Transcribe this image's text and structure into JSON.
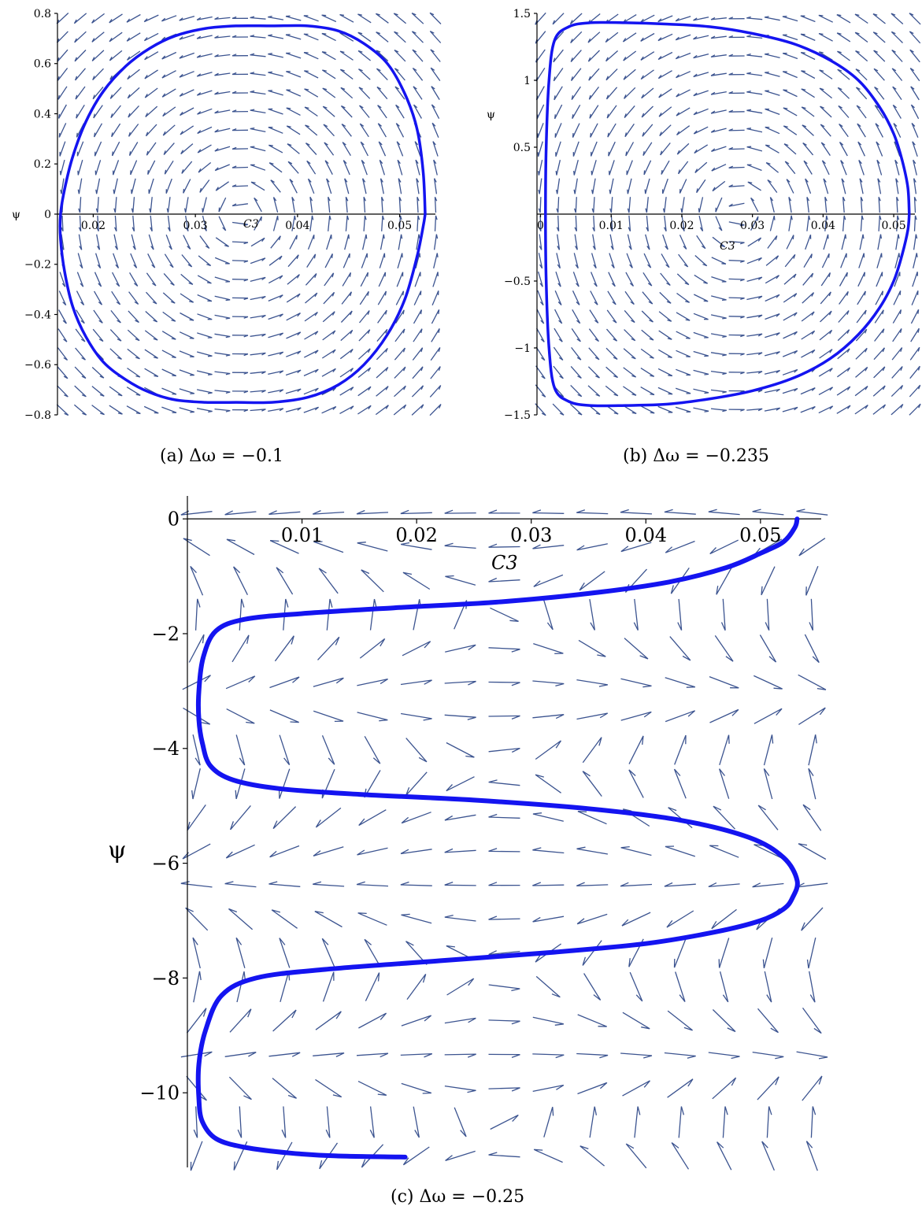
{
  "chart_data": [
    {
      "type": "line",
      "caption": "(a)  Δω = −0.1",
      "xlabel": "C3",
      "ylabel": "ψ",
      "xlim": [
        0.0165,
        0.0535
      ],
      "ylim": [
        -0.8,
        0.8
      ],
      "x_ticks": [
        "0.02",
        "0.03",
        "0.04",
        "0.05"
      ],
      "y_ticks": [
        "−0.8",
        "−0.6",
        "−0.4",
        "−0.2",
        "0",
        "0.2",
        "0.4",
        "0.6",
        "0.8"
      ],
      "series": [
        {
          "x": [
            0.0525,
            0.0523,
            0.0517,
            0.0505,
            0.0488,
            0.0465,
            0.044,
            0.041,
            0.0375,
            0.034,
            0.031,
            0.028,
            0.0255,
            0.0232,
            0.021,
            0.0193,
            0.018,
            0.0172,
            0.0168,
            0.0168,
            0.0172,
            0.018,
            0.0193,
            0.021,
            0.0232,
            0.0255,
            0.028,
            0.031,
            0.034,
            0.0375,
            0.041,
            0.044,
            0.0465,
            0.0488,
            0.0505,
            0.0517,
            0.0523,
            0.0525
          ],
          "y": [
            0.0,
            0.17,
            0.34,
            0.48,
            0.6,
            0.68,
            0.73,
            0.75,
            0.75,
            0.75,
            0.74,
            0.71,
            0.66,
            0.59,
            0.49,
            0.37,
            0.23,
            0.1,
            0.0,
            -0.1,
            -0.23,
            -0.37,
            -0.49,
            -0.59,
            -0.66,
            -0.71,
            -0.74,
            -0.75,
            -0.75,
            -0.75,
            -0.73,
            -0.68,
            -0.6,
            -0.48,
            -0.34,
            -0.17,
            -0.05,
            0.0
          ]
        }
      ]
    },
    {
      "type": "line",
      "caption": "(b)  Δω = −0.235",
      "xlabel": "C3",
      "ylabel": "ψ",
      "xlim": [
        -0.0005,
        0.053
      ],
      "ylim": [
        -1.5,
        1.5
      ],
      "x_ticks": [
        "0",
        "0.01",
        "0.02",
        "0.03",
        "0.04",
        "0.05"
      ],
      "y_ticks": [
        "−1.5",
        "−1",
        "−0.5",
        "0.5",
        "1",
        "1.5"
      ],
      "series": [
        {
          "x": [
            0.0522,
            0.052,
            0.0512,
            0.05,
            0.048,
            0.045,
            0.041,
            0.036,
            0.03,
            0.024,
            0.018,
            0.012,
            0.007,
            0.004,
            0.002,
            0.0012,
            0.0008,
            0.0007,
            0.0008,
            0.0012,
            0.002,
            0.004,
            0.007,
            0.012,
            0.018,
            0.024,
            0.03,
            0.036,
            0.041,
            0.045,
            0.048,
            0.05,
            0.0512,
            0.052,
            0.0522
          ],
          "y": [
            0.0,
            0.2,
            0.4,
            0.6,
            0.8,
            1.0,
            1.15,
            1.27,
            1.35,
            1.4,
            1.42,
            1.43,
            1.43,
            1.4,
            1.3,
            1.0,
            0.5,
            0.0,
            -0.5,
            -1.0,
            -1.3,
            -1.4,
            -1.43,
            -1.43,
            -1.42,
            -1.38,
            -1.32,
            -1.22,
            -1.08,
            -0.9,
            -0.7,
            -0.5,
            -0.3,
            -0.12,
            0.0
          ]
        }
      ]
    },
    {
      "type": "line",
      "caption": "(c)  Δω = −0.25",
      "xlabel": "C3",
      "ylabel": "ψ",
      "xlim": [
        0.0,
        0.0553
      ],
      "ylim": [
        -11.3,
        0.4
      ],
      "x_ticks": [
        "0.01",
        "0.02",
        "0.03",
        "0.04",
        "0.05"
      ],
      "y_ticks": [
        "0",
        "−2",
        "−4",
        "−6",
        "−8",
        "−10"
      ],
      "series": [
        {
          "x": [
            0.0532,
            0.053,
            0.052,
            0.05,
            0.047,
            0.042,
            0.035,
            0.027,
            0.018,
            0.01,
            0.005,
            0.0025,
            0.0014,
            0.001,
            0.001,
            0.0013,
            0.002,
            0.004,
            0.008,
            0.015,
            0.025,
            0.035,
            0.043,
            0.049,
            0.052,
            0.0532,
            0.0528,
            0.052,
            0.05,
            0.046,
            0.04,
            0.032,
            0.022,
            0.012,
            0.006,
            0.003,
            0.0016,
            0.001,
            0.001,
            0.0013,
            0.0025,
            0.005,
            0.009,
            0.013,
            0.019
          ],
          "y": [
            0.0,
            -0.15,
            -0.4,
            -0.6,
            -0.85,
            -1.1,
            -1.3,
            -1.45,
            -1.55,
            -1.65,
            -1.75,
            -1.95,
            -2.4,
            -3.0,
            -3.5,
            -3.9,
            -4.3,
            -4.55,
            -4.7,
            -4.8,
            -4.9,
            -5.05,
            -5.25,
            -5.55,
            -5.9,
            -6.3,
            -6.6,
            -6.8,
            -7.0,
            -7.2,
            -7.4,
            -7.55,
            -7.7,
            -7.85,
            -8.0,
            -8.3,
            -8.9,
            -9.5,
            -10.1,
            -10.5,
            -10.8,
            -10.95,
            -11.05,
            -11.1,
            -11.12
          ]
        }
      ]
    }
  ]
}
